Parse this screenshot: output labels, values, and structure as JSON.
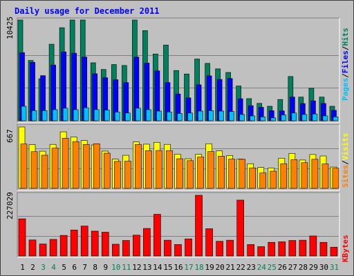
{
  "chart_data": {
    "title": "Daily usage for December 2011",
    "type": "bar",
    "days": [
      "1",
      "2",
      "3",
      "4",
      "5",
      "6",
      "7",
      "8",
      "9",
      "10",
      "11",
      "12",
      "13",
      "14",
      "15",
      "16",
      "17",
      "18",
      "19",
      "20",
      "21",
      "22",
      "23",
      "24",
      "25",
      "26",
      "27",
      "28",
      "29",
      "30",
      "31"
    ],
    "weekend_days": [
      3,
      4,
      10,
      11,
      17,
      18,
      24,
      25,
      31
    ],
    "panels": [
      {
        "id": "hits-files-pages",
        "max_label": "10425",
        "ymax": 10425,
        "series": [
          {
            "name": "Hits",
            "color": "#00805c",
            "values": [
              10425,
              6240,
              4350,
              7920,
              9630,
              10425,
              10425,
              6000,
              5310,
              5820,
              5720,
              10425,
              9330,
              6910,
              7840,
              5200,
              4840,
              6390,
              5940,
              5370,
              5000,
              3600,
              2290,
              1800,
              1500,
              2200,
              4580,
              2450,
              3360,
              2450,
              1500
            ]
          },
          {
            "name": "Files",
            "color": "#0000ff",
            "values": [
              7050,
              6050,
              4670,
              5770,
              7130,
              6990,
              6590,
              4860,
              4450,
              4250,
              3950,
              6590,
              5970,
              5160,
              3950,
              2770,
              2370,
              3720,
              4650,
              4280,
              4370,
              2280,
              1560,
              1390,
              1040,
              1020,
              2450,
              1780,
              2060,
              1790,
              1080
            ]
          },
          {
            "name": "Pages",
            "color": "#00c0ff",
            "values": [
              1500,
              1050,
              1050,
              1150,
              1300,
              1150,
              1350,
              1150,
              1100,
              900,
              800,
              1300,
              1150,
              1000,
              900,
              750,
              800,
              1000,
              1050,
              1000,
              950,
              650,
              500,
              400,
              300,
              600,
              800,
              650,
              700,
              500,
              400
            ]
          }
        ],
        "legend": [
          "Pages",
          "Files",
          "Hits"
        ]
      },
      {
        "id": "visits-sites",
        "max_label": "667",
        "ymax": 667,
        "series": [
          {
            "name": "Visits",
            "color": "#ffff00",
            "values": [
              667,
              476,
              404,
              478,
              614,
              558,
              520,
              472,
              405,
              317,
              359,
              505,
              480,
              500,
              478,
              372,
              322,
              369,
              485,
              407,
              357,
              318,
              268,
              227,
              222,
              328,
              380,
              308,
              368,
              352,
              232
            ]
          },
          {
            "name": "Sites",
            "color": "#ff8000",
            "values": [
              482,
              399,
              360,
              437,
              544,
              508,
              477,
              485,
              382,
              293,
              296,
              478,
              409,
              411,
              410,
              322,
              301,
              341,
              400,
              350,
              318,
              316,
              222,
              168,
              187,
              268,
              313,
              279,
              316,
              266,
              219
            ]
          }
        ],
        "legend": [
          "Sites",
          "Visits"
        ]
      },
      {
        "id": "kbytes",
        "max_label": "227029",
        "ymax": 227029,
        "series": [
          {
            "name": "KBytes",
            "color": "#ff0000",
            "values": [
              139000,
              60000,
              45000,
              62000,
              77000,
              97000,
              112000,
              93000,
              89000,
              44000,
              58000,
              78000,
              103000,
              156000,
              59000,
              43000,
              64000,
              227029,
              102000,
              55000,
              59000,
              209000,
              43000,
              35000,
              51000,
              53000,
              58000,
              59000,
              75000,
              51000,
              33000
            ]
          }
        ],
        "legend": [
          "KBytes"
        ]
      }
    ]
  }
}
